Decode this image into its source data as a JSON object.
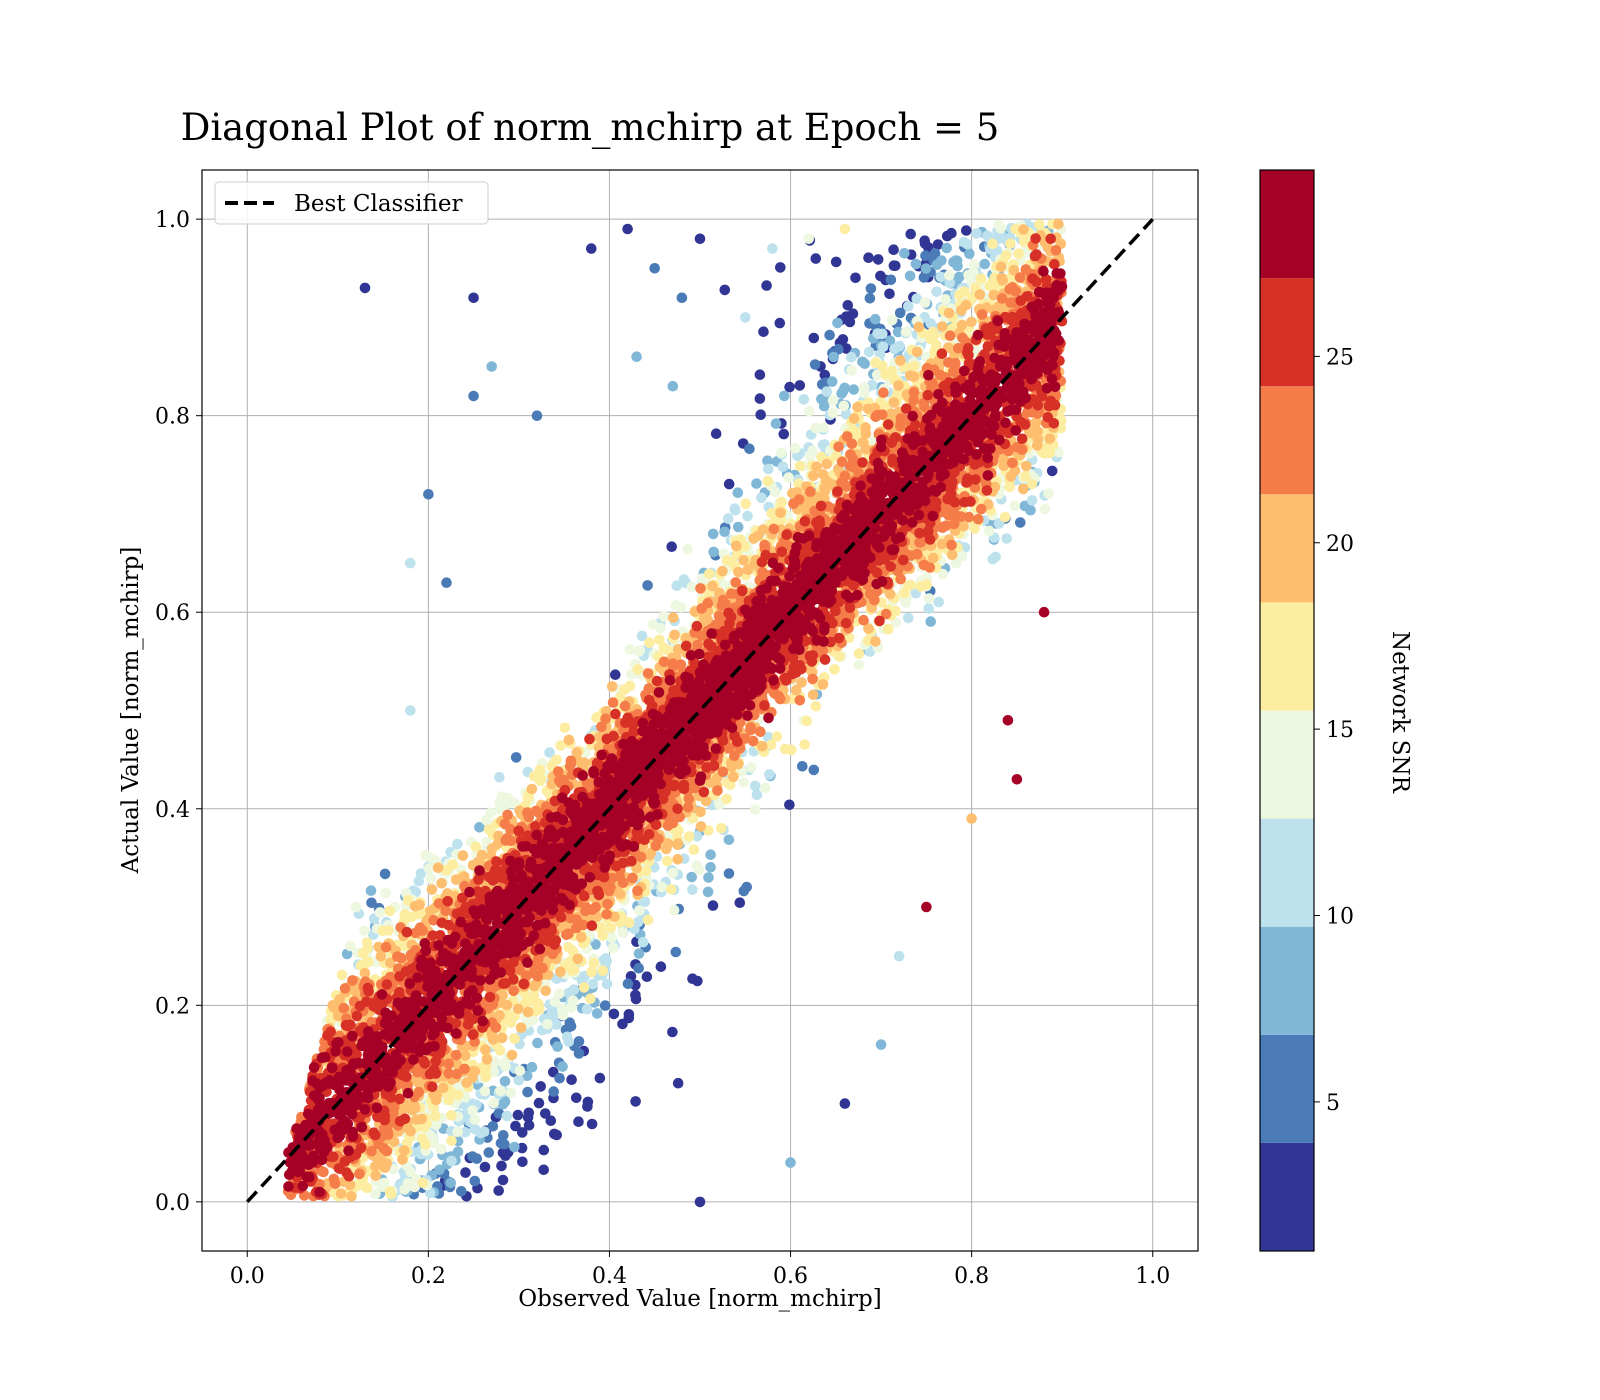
{
  "chart_data": {
    "type": "scatter",
    "title": "Diagonal Plot of norm_mchirp at Epoch = 5",
    "xlabel": "Observed Value [norm_mchirp]",
    "ylabel": "Actual Value [norm_mchirp]",
    "xlim": [
      -0.05,
      1.05
    ],
    "ylim": [
      -0.05,
      1.05
    ],
    "xticks": [
      0.0,
      0.2,
      0.4,
      0.6,
      0.8,
      1.0
    ],
    "yticks": [
      0.0,
      0.2,
      0.4,
      0.6,
      0.8,
      1.0
    ],
    "xtick_labels": [
      "0.0",
      "0.2",
      "0.4",
      "0.6",
      "0.8",
      "1.0"
    ],
    "ytick_labels": [
      "0.0",
      "0.2",
      "0.4",
      "0.6",
      "0.8",
      "1.0"
    ],
    "grid": true,
    "legend": {
      "position": "top-left",
      "entries": [
        "Best Classifier"
      ]
    },
    "reference_line": {
      "name": "Best Classifier",
      "style": "dashed",
      "color": "#000000",
      "x": [
        0.0,
        1.0
      ],
      "y": [
        0.0,
        1.0
      ]
    },
    "colorbar": {
      "label": "Network SNR",
      "range": [
        1,
        30
      ],
      "ticks": [
        5,
        10,
        15,
        20,
        25
      ],
      "tick_labels": [
        "5",
        "10",
        "15",
        "20",
        "25"
      ],
      "bins": [
        {
          "from": 1.0,
          "to": 3.9,
          "color": "#313695"
        },
        {
          "from": 3.9,
          "to": 6.8,
          "color": "#4a7bb7"
        },
        {
          "from": 6.8,
          "to": 9.7,
          "color": "#80b6d6"
        },
        {
          "from": 9.7,
          "to": 12.6,
          "color": "#bde2ee"
        },
        {
          "from": 12.6,
          "to": 15.5,
          "color": "#eef8e0"
        },
        {
          "from": 15.5,
          "to": 18.4,
          "color": "#fdeda1"
        },
        {
          "from": 18.4,
          "to": 21.3,
          "color": "#fdbe70"
        },
        {
          "from": 21.3,
          "to": 24.2,
          "color": "#f57d4a"
        },
        {
          "from": 24.2,
          "to": 27.1,
          "color": "#d73027"
        },
        {
          "from": 27.1,
          "to": 30.0,
          "color": "#a50026"
        }
      ]
    },
    "points": [
      {
        "x": 0.13,
        "y": 0.93,
        "snr": 2
      },
      {
        "x": 0.18,
        "y": 0.65,
        "snr": 11
      },
      {
        "x": 0.2,
        "y": 0.72,
        "snr": 5
      },
      {
        "x": 0.25,
        "y": 0.92,
        "snr": 3
      },
      {
        "x": 0.25,
        "y": 0.82,
        "snr": 6
      },
      {
        "x": 0.22,
        "y": 0.63,
        "snr": 4
      },
      {
        "x": 0.27,
        "y": 0.85,
        "snr": 7
      },
      {
        "x": 0.32,
        "y": 0.8,
        "snr": 5
      },
      {
        "x": 0.15,
        "y": 0.25,
        "snr": 14
      },
      {
        "x": 0.12,
        "y": 0.3,
        "snr": 15
      },
      {
        "x": 0.18,
        "y": 0.5,
        "snr": 12
      },
      {
        "x": 0.38,
        "y": 0.97,
        "snr": 2
      },
      {
        "x": 0.42,
        "y": 0.99,
        "snr": 2
      },
      {
        "x": 0.45,
        "y": 0.95,
        "snr": 4
      },
      {
        "x": 0.48,
        "y": 0.92,
        "snr": 6
      },
      {
        "x": 0.5,
        "y": 0.98,
        "snr": 3
      },
      {
        "x": 0.43,
        "y": 0.86,
        "snr": 7
      },
      {
        "x": 0.47,
        "y": 0.83,
        "snr": 9
      },
      {
        "x": 0.55,
        "y": 0.9,
        "snr": 10
      },
      {
        "x": 0.58,
        "y": 0.97,
        "snr": 12
      },
      {
        "x": 0.62,
        "y": 0.98,
        "snr": 15
      },
      {
        "x": 0.66,
        "y": 0.99,
        "snr": 18
      },
      {
        "x": 0.6,
        "y": 0.04,
        "snr": 7
      },
      {
        "x": 0.66,
        "y": 0.1,
        "snr": 3
      },
      {
        "x": 0.7,
        "y": 0.16,
        "snr": 8
      },
      {
        "x": 0.75,
        "y": 0.3,
        "snr": 28
      },
      {
        "x": 0.72,
        "y": 0.25,
        "snr": 10
      },
      {
        "x": 0.8,
        "y": 0.39,
        "snr": 19
      },
      {
        "x": 0.84,
        "y": 0.49,
        "snr": 28
      },
      {
        "x": 0.88,
        "y": 0.6,
        "snr": 28
      },
      {
        "x": 0.89,
        "y": 0.86,
        "snr": 28
      },
      {
        "x": 0.85,
        "y": 0.43,
        "snr": 28
      },
      {
        "x": 0.5,
        "y": 0.0,
        "snr": 2
      },
      {
        "x": 0.05,
        "y": 0.05,
        "snr": 26
      },
      {
        "x": 0.08,
        "y": 0.01,
        "snr": 28
      }
    ]
  }
}
